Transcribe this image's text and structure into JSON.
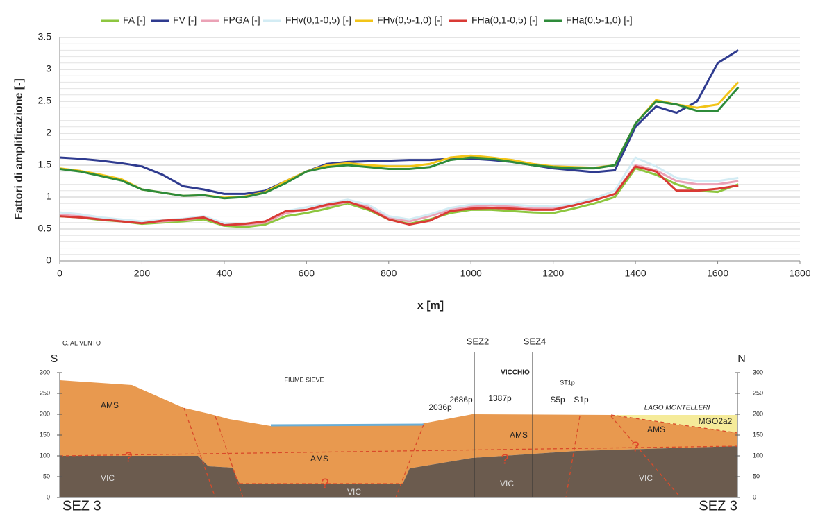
{
  "chart_data": {
    "type": "line",
    "y_label": "Fattori di amplificazione [-]",
    "x_label": "x [m]",
    "x": [
      0,
      50,
      100,
      150,
      200,
      250,
      300,
      350,
      400,
      450,
      500,
      550,
      600,
      650,
      700,
      750,
      800,
      850,
      900,
      950,
      1000,
      1050,
      1100,
      1150,
      1200,
      1250,
      1300,
      1350,
      1400,
      1450,
      1500,
      1550,
      1600,
      1650
    ],
    "series": [
      {
        "name": "FA [-]",
        "color": "#8dc63f",
        "values": [
          0.7,
          0.68,
          0.64,
          0.62,
          0.58,
          0.6,
          0.62,
          0.65,
          0.55,
          0.53,
          0.57,
          0.7,
          0.75,
          0.82,
          0.9,
          0.8,
          0.65,
          0.58,
          0.65,
          0.75,
          0.8,
          0.8,
          0.78,
          0.76,
          0.75,
          0.82,
          0.9,
          1.0,
          1.45,
          1.35,
          1.2,
          1.1,
          1.08,
          1.2
        ]
      },
      {
        "name": "FV [-]",
        "color": "#2f3b8f",
        "values": [
          1.62,
          1.6,
          1.57,
          1.53,
          1.48,
          1.35,
          1.17,
          1.12,
          1.05,
          1.05,
          1.1,
          1.25,
          1.4,
          1.52,
          1.55,
          1.56,
          1.57,
          1.58,
          1.58,
          1.6,
          1.6,
          1.58,
          1.55,
          1.5,
          1.45,
          1.42,
          1.39,
          1.42,
          2.1,
          2.42,
          2.32,
          2.5,
          3.1,
          3.3
        ]
      },
      {
        "name": "FPGA [-]",
        "color": "#eba2b6",
        "values": [
          0.72,
          0.7,
          0.66,
          0.63,
          0.6,
          0.62,
          0.64,
          0.68,
          0.57,
          0.56,
          0.6,
          0.75,
          0.8,
          0.86,
          0.92,
          0.85,
          0.68,
          0.62,
          0.7,
          0.8,
          0.85,
          0.87,
          0.85,
          0.82,
          0.82,
          0.88,
          0.95,
          1.05,
          1.5,
          1.42,
          1.25,
          1.2,
          1.2,
          1.25
        ]
      },
      {
        "name": "FHv(0,1-0,5) [-]",
        "color": "#d3ecf4",
        "values": [
          0.76,
          0.73,
          0.68,
          0.65,
          0.62,
          0.64,
          0.66,
          0.7,
          0.59,
          0.58,
          0.62,
          0.78,
          0.84,
          0.9,
          0.96,
          0.88,
          0.7,
          0.65,
          0.73,
          0.83,
          0.88,
          0.9,
          0.88,
          0.86,
          0.85,
          0.9,
          0.98,
          1.1,
          1.62,
          1.48,
          1.3,
          1.25,
          1.25,
          1.3
        ]
      },
      {
        "name": "FHv(0,5-1,0) [-]",
        "color": "#f2c418",
        "values": [
          1.45,
          1.41,
          1.35,
          1.28,
          1.12,
          1.07,
          1.02,
          1.03,
          0.99,
          1.01,
          1.08,
          1.25,
          1.4,
          1.5,
          1.53,
          1.5,
          1.48,
          1.48,
          1.52,
          1.62,
          1.65,
          1.62,
          1.58,
          1.52,
          1.48,
          1.47,
          1.46,
          1.5,
          2.15,
          2.52,
          2.45,
          2.4,
          2.45,
          2.8
        ]
      },
      {
        "name": "FHa(0,1-0,5) [-]",
        "color": "#d93a35",
        "values": [
          0.7,
          0.68,
          0.65,
          0.62,
          0.59,
          0.63,
          0.65,
          0.68,
          0.56,
          0.58,
          0.62,
          0.78,
          0.8,
          0.88,
          0.93,
          0.82,
          0.65,
          0.57,
          0.63,
          0.78,
          0.82,
          0.83,
          0.82,
          0.8,
          0.8,
          0.87,
          0.95,
          1.05,
          1.48,
          1.4,
          1.1,
          1.1,
          1.13,
          1.18
        ]
      },
      {
        "name": "FHa(0,5-1,0) [-]",
        "color": "#2e8b3a",
        "values": [
          1.44,
          1.4,
          1.33,
          1.26,
          1.12,
          1.07,
          1.02,
          1.03,
          0.98,
          1.0,
          1.07,
          1.22,
          1.4,
          1.47,
          1.5,
          1.47,
          1.44,
          1.44,
          1.47,
          1.58,
          1.62,
          1.6,
          1.55,
          1.5,
          1.47,
          1.45,
          1.45,
          1.5,
          2.15,
          2.5,
          2.45,
          2.35,
          2.35,
          2.72
        ]
      }
    ],
    "xlim": [
      0,
      1800
    ],
    "xticks": [
      0,
      200,
      400,
      600,
      800,
      1000,
      1200,
      1400,
      1600,
      1800
    ],
    "ylim": [
      0,
      3.5
    ],
    "yticks": [
      0,
      0.5,
      1,
      1.5,
      2,
      2.5,
      3,
      3.5
    ],
    "grid": true,
    "legend": "top"
  },
  "section": {
    "ticks": [
      0,
      50,
      100,
      150,
      200,
      250,
      300
    ],
    "south": "S",
    "north": "N",
    "left_name": "SEZ 3",
    "right_name": "SEZ 3",
    "places": [
      "C. AL VENTO",
      "FIUME SIEVE",
      "VICCHIO",
      "LAGO MONTELLERI"
    ],
    "sections": [
      "SEZ2",
      "SEZ4"
    ],
    "wells": [
      "2036p",
      "2686p",
      "1387p",
      "ST1p",
      "S5p",
      "S1p"
    ],
    "units": [
      "AMS",
      "AMS",
      "AMS",
      "AMS",
      "VIC",
      "VIC",
      "VIC",
      "VIC",
      "MGO2a2"
    ],
    "unknown": "?"
  }
}
